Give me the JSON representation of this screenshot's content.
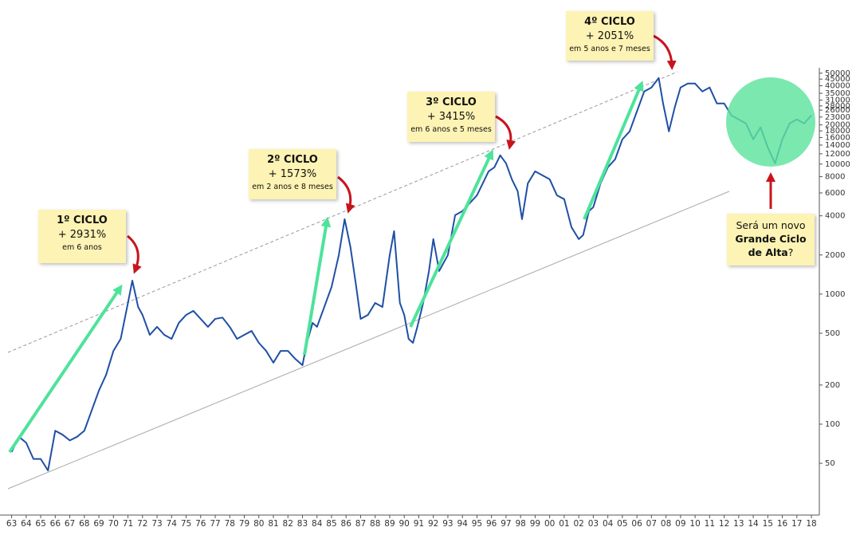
{
  "chart_data": {
    "type": "line",
    "log_y": true,
    "color": "#1f4fa6",
    "x": [
      1963,
      1963.5,
      1964,
      1964.5,
      1965,
      1965.5,
      1966,
      1966.5,
      1967,
      1967.5,
      1968,
      1968.5,
      1969,
      1969.5,
      1970,
      1970.5,
      1971,
      1971.3,
      1971.7,
      1972,
      1972.5,
      1973,
      1973.5,
      1974,
      1974.5,
      1975,
      1975.5,
      1976,
      1976.5,
      1977,
      1977.5,
      1978,
      1978.5,
      1979,
      1979.5,
      1980,
      1980.5,
      1981,
      1981.5,
      1982,
      1982.5,
      1983,
      1983.3,
      1983.7,
      1984,
      1984.5,
      1985,
      1985.5,
      1985.9,
      1986.3,
      1986.7,
      1987,
      1987.5,
      1988,
      1988.5,
      1989,
      1989.3,
      1989.7,
      1990,
      1990.3,
      1990.6,
      1990.9,
      1991.3,
      1991.7,
      1992,
      1992.4,
      1993,
      1993.5,
      1994,
      1994.5,
      1995,
      1995.4,
      1995.8,
      1996.2,
      1996.6,
      1997,
      1997.4,
      1997.8,
      1998.1,
      1998.5,
      1999,
      1999.5,
      2000,
      2000.5,
      2001,
      2001.5,
      2002,
      2002.3,
      2002.7,
      2003,
      2003.5,
      2004,
      2004.5,
      2005,
      2005.5,
      2006,
      2006.5,
      2007,
      2007.5,
      2007.8,
      2008.2,
      2008.6,
      2009,
      2009.5,
      2010,
      2010.5,
      2011,
      2011.5,
      2012,
      2012.5,
      2013,
      2013.5,
      2014,
      2014.5,
      2015,
      2015.5,
      2016,
      2016.5,
      2017,
      2017.5,
      2018
    ],
    "values": [
      61,
      80,
      72,
      54,
      54,
      44,
      89,
      83,
      75,
      80,
      89,
      127,
      181,
      240,
      366,
      453,
      855,
      1270,
      796,
      692,
      486,
      560,
      486,
      453,
      601,
      692,
      743,
      645,
      560,
      645,
      660,
      560,
      453,
      486,
      521,
      422,
      366,
      297,
      366,
      366,
      318,
      284,
      422,
      601,
      560,
      796,
      1135,
      1995,
      3770,
      2300,
      1135,
      645,
      692,
      855,
      796,
      1995,
      3050,
      855,
      692,
      453,
      422,
      560,
      855,
      1506,
      2650,
      1506,
      1995,
      4045,
      4345,
      5000,
      5750,
      7110,
      8790,
      9440,
      11670,
      10140,
      7640,
      6180,
      3770,
      7110,
      8790,
      8200,
      7640,
      5750,
      5370,
      3270,
      2650,
      2840,
      4345,
      4660,
      7110,
      9440,
      10870,
      15490,
      17830,
      25400,
      36140,
      38800,
      45900,
      29240,
      17830,
      27230,
      38800,
      41600,
      41600,
      36140,
      38800,
      29240,
      29240,
      23660,
      22030,
      20510,
      15490,
      19140,
      13430,
      10140,
      15490,
      20510,
      22030,
      20510,
      23660
    ],
    "xlim": [
      1962.2,
      2018.6
    ],
    "xticks": [
      {
        "value": 1963,
        "label": "63"
      },
      {
        "value": 1964,
        "label": "64"
      },
      {
        "value": 1965,
        "label": "65"
      },
      {
        "value": 1966,
        "label": "66"
      },
      {
        "value": 1967,
        "label": "67"
      },
      {
        "value": 1968,
        "label": "68"
      },
      {
        "value": 1969,
        "label": "69"
      },
      {
        "value": 1970,
        "label": "70"
      },
      {
        "value": 1971,
        "label": "71"
      },
      {
        "value": 1972,
        "label": "72"
      },
      {
        "value": 1973,
        "label": "73"
      },
      {
        "value": 1974,
        "label": "74"
      },
      {
        "value": 1975,
        "label": "75"
      },
      {
        "value": 1976,
        "label": "76"
      },
      {
        "value": 1977,
        "label": "77"
      },
      {
        "value": 1978,
        "label": "78"
      },
      {
        "value": 1979,
        "label": "79"
      },
      {
        "value": 1980,
        "label": "80"
      },
      {
        "value": 1981,
        "label": "81"
      },
      {
        "value": 1982,
        "label": "82"
      },
      {
        "value": 1983,
        "label": "83"
      },
      {
        "value": 1984,
        "label": "84"
      },
      {
        "value": 1985,
        "label": "85"
      },
      {
        "value": 1986,
        "label": "86"
      },
      {
        "value": 1987,
        "label": "87"
      },
      {
        "value": 1988,
        "label": "88"
      },
      {
        "value": 1989,
        "label": "89"
      },
      {
        "value": 1990,
        "label": "90"
      },
      {
        "value": 1991,
        "label": "91"
      },
      {
        "value": 1992,
        "label": "92"
      },
      {
        "value": 1993,
        "label": "93"
      },
      {
        "value": 1994,
        "label": "94"
      },
      {
        "value": 1995,
        "label": "95"
      },
      {
        "value": 1996,
        "label": "96"
      },
      {
        "value": 1997,
        "label": "97"
      },
      {
        "value": 1998,
        "label": "98"
      },
      {
        "value": 1999,
        "label": "99"
      },
      {
        "value": 2000,
        "label": "00"
      },
      {
        "value": 2001,
        "label": "01"
      },
      {
        "value": 2002,
        "label": "02"
      },
      {
        "value": 2003,
        "label": "03"
      },
      {
        "value": 2004,
        "label": "04"
      },
      {
        "value": 2005,
        "label": "05"
      },
      {
        "value": 2006,
        "label": "06"
      },
      {
        "value": 2007,
        "label": "07"
      },
      {
        "value": 2008,
        "label": "08"
      },
      {
        "value": 2009,
        "label": "09"
      },
      {
        "value": 2010,
        "label": "10"
      },
      {
        "value": 2011,
        "label": "11"
      },
      {
        "value": 2012,
        "label": "12"
      },
      {
        "value": 2013,
        "label": "13"
      },
      {
        "value": 2014,
        "label": "14"
      },
      {
        "value": 2015,
        "label": "15"
      },
      {
        "value": 2016,
        "label": "16"
      },
      {
        "value": 2017,
        "label": "17"
      },
      {
        "value": 2018,
        "label": "18"
      }
    ],
    "ylim": [
      20,
      55000
    ],
    "yticks": [
      50,
      100,
      200,
      500,
      1000,
      2000,
      4000,
      6000,
      8000,
      10000,
      12000,
      14000,
      16000,
      18000,
      20000,
      23000,
      26000,
      28000,
      31000,
      35000,
      40000,
      45000,
      50000
    ],
    "annotations": [
      {
        "title": "1º CICLO",
        "value": "+ 2931%",
        "note": "em 6 anos"
      },
      {
        "title": "2º CICLO",
        "value": "+ 1573%",
        "note": "em 2 anos e 8 meses"
      },
      {
        "title": "3º CICLO",
        "value": "+ 3415%",
        "note": "em 6 anos e 5 meses"
      },
      {
        "title": "4º CICLO",
        "value": "+ 2051%",
        "note": "em 5 anos e 7 meses"
      }
    ],
    "question": {
      "text": "Será um novo",
      "bold": [
        "Grande Ciclo",
        "de Alta"
      ],
      "end": "?"
    }
  }
}
